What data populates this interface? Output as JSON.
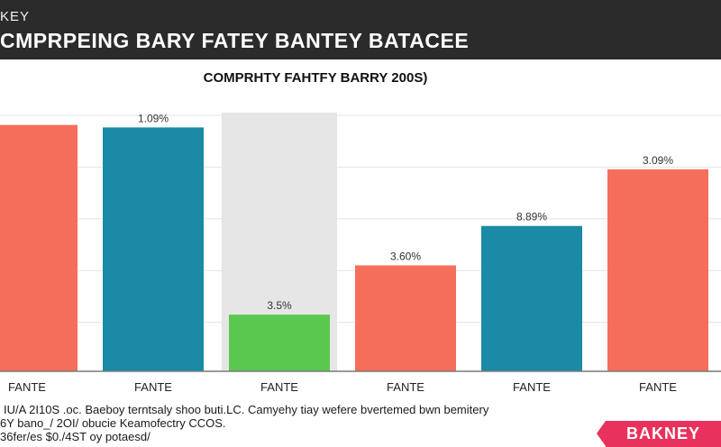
{
  "header": {
    "brand": "KEY",
    "title": "CMPRPEING BARY FATEY BANTEY BATACEE"
  },
  "chart_data": {
    "type": "bar",
    "title": "COMPRHTY FAHTFY BARRY 200S)",
    "categories": [
      "FANTE",
      "FANTE",
      "FANTE",
      "FANTE",
      "FANTE",
      "FANTE"
    ],
    "values": [
      10.0,
      9.9,
      2.3,
      4.3,
      5.9,
      8.2
    ],
    "data_labels": [
      "",
      "1.09%",
      "3.5%",
      "3.60%",
      "8.89%",
      "3.09%"
    ],
    "colors": [
      "#f56e5a",
      "#1a8aa6",
      "#5ac84e",
      "#f56e5a",
      "#1a8aa6",
      "#f56e5a"
    ],
    "highlight_index": 2,
    "highlight_color": "#e6e6e6",
    "grid_color": "#e3e3e3",
    "baseline_color": "#7a7a7a",
    "ylim": [
      0,
      10.5
    ],
    "grid": true
  },
  "footnotes": [
    "IU/A 2I10S .oc. Baeboy terntsaly shoo buti.LC. Camyehy tiay wefere bvertemed bwn bemitery",
    "6Y bano_/ 2OI/ obucie Keamofectry CCOS.",
    "36fer/es $0./4ST oy potaesd/"
  ],
  "logo_text": "BAKNEY"
}
